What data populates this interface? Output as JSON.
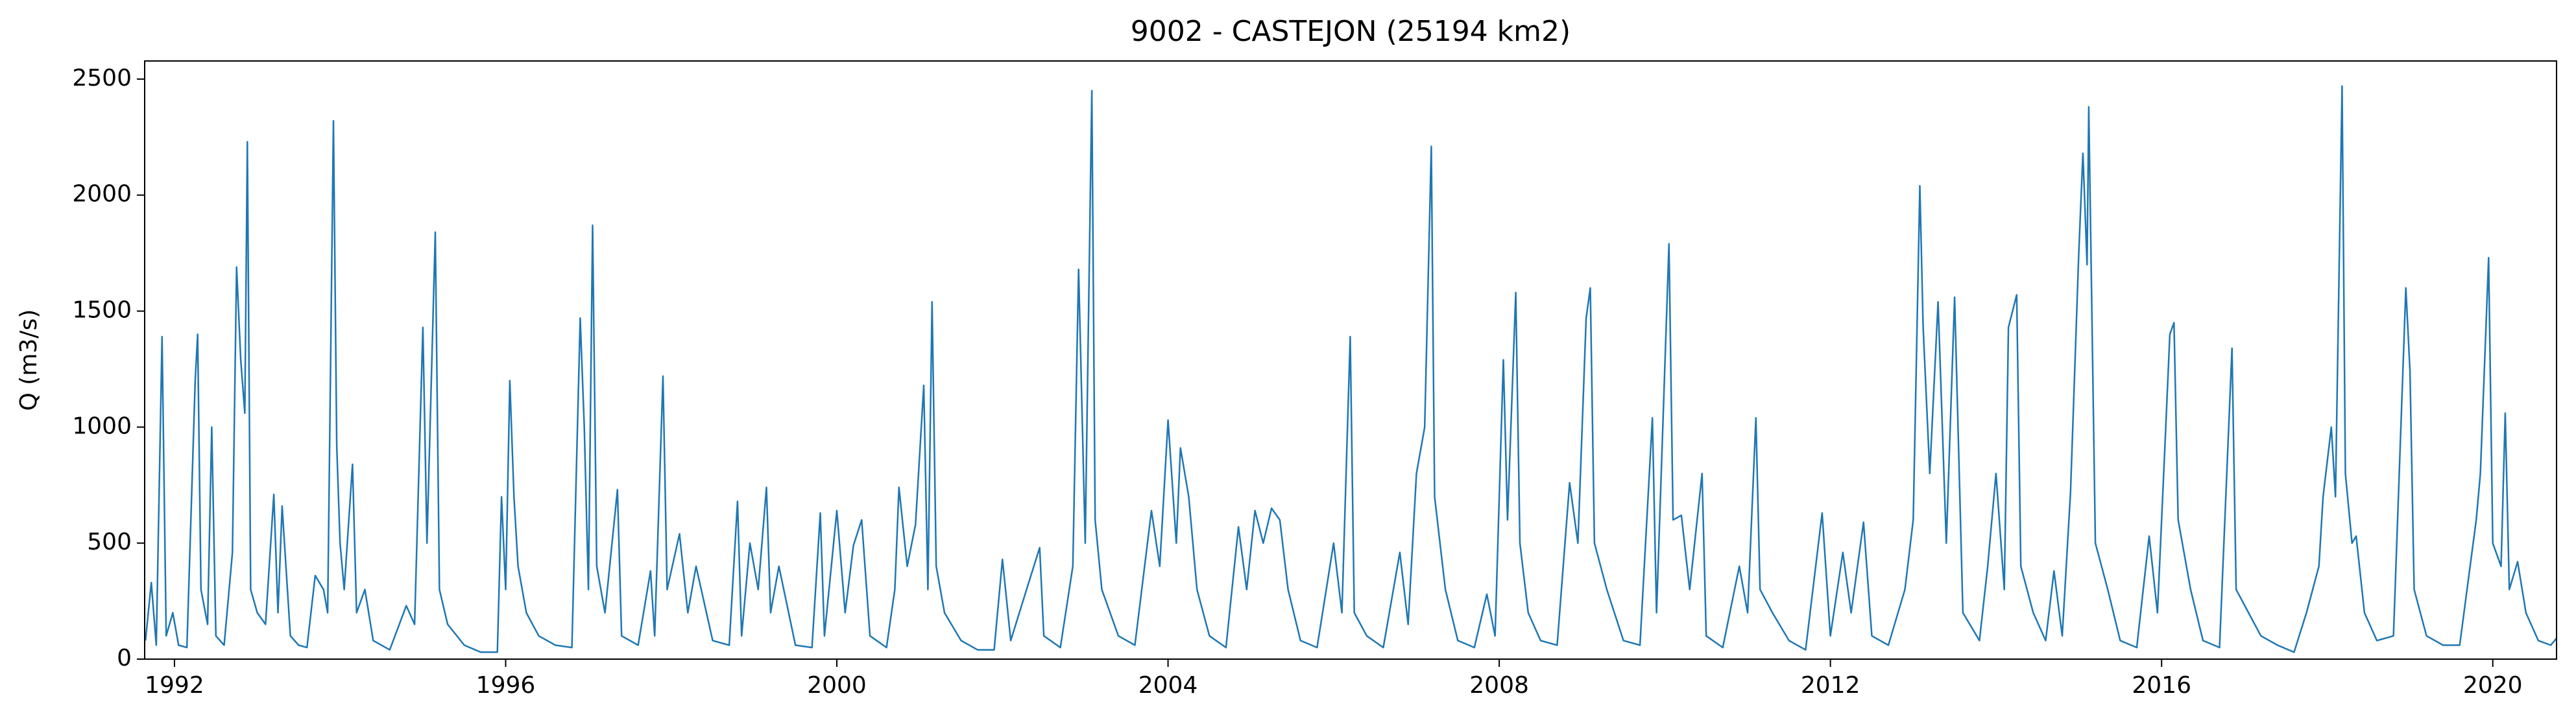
{
  "chart_data": {
    "type": "line",
    "title": "9002 - CASTEJON (25194 km2)",
    "y_label": "Q (m3/s)",
    "xlim": [
      1991.64,
      2020.77
    ],
    "xticks": [
      1992,
      1996,
      2000,
      2004,
      2008,
      2012,
      2016,
      2020
    ],
    "ylim": [
      0,
      2578
    ],
    "yticks": [
      0,
      500,
      1000,
      1500,
      2000,
      2500
    ],
    "grid": false,
    "series": [
      {
        "name": "Q",
        "color": "#1f77b4",
        "x": [
          1991.65,
          1991.72,
          1991.78,
          1991.85,
          1991.9,
          1991.98,
          1992.05,
          1992.15,
          1992.25,
          1992.28,
          1992.32,
          1992.4,
          1992.45,
          1992.5,
          1992.6,
          1992.7,
          1992.75,
          1992.8,
          1992.85,
          1992.88,
          1992.92,
          1993.0,
          1993.1,
          1993.2,
          1993.25,
          1993.3,
          1993.4,
          1993.5,
          1993.6,
          1993.7,
          1993.8,
          1993.85,
          1993.92,
          1993.96,
          1994.0,
          1994.05,
          1994.15,
          1994.2,
          1994.3,
          1994.4,
          1994.6,
          1994.8,
          1994.9,
          1995.0,
          1995.05,
          1995.15,
          1995.2,
          1995.3,
          1995.5,
          1995.7,
          1995.9,
          1995.95,
          1996.0,
          1996.05,
          1996.1,
          1996.15,
          1996.25,
          1996.4,
          1996.6,
          1996.8,
          1996.9,
          1996.95,
          1997.0,
          1997.05,
          1997.1,
          1997.2,
          1997.35,
          1997.4,
          1997.6,
          1997.75,
          1997.8,
          1997.9,
          1997.95,
          1998.1,
          1998.2,
          1998.3,
          1998.5,
          1998.7,
          1998.8,
          1998.85,
          1998.95,
          1999.05,
          1999.15,
          1999.2,
          1999.3,
          1999.5,
          1999.7,
          1999.8,
          1999.85,
          2000.0,
          2000.1,
          2000.2,
          2000.3,
          2000.4,
          2000.6,
          2000.7,
          2000.75,
          2000.85,
          2000.95,
          2001.05,
          2001.1,
          2001.15,
          2001.2,
          2001.3,
          2001.5,
          2001.7,
          2001.9,
          2002.0,
          2002.1,
          2002.3,
          2002.45,
          2002.5,
          2002.7,
          2002.85,
          2002.92,
          2003.0,
          2003.08,
          2003.12,
          2003.2,
          2003.4,
          2003.6,
          2003.8,
          2003.9,
          2004.0,
          2004.1,
          2004.15,
          2004.25,
          2004.35,
          2004.5,
          2004.7,
          2004.85,
          2004.95,
          2005.05,
          2005.15,
          2005.25,
          2005.35,
          2005.45,
          2005.6,
          2005.8,
          2006.0,
          2006.1,
          2006.2,
          2006.25,
          2006.4,
          2006.6,
          2006.8,
          2006.9,
          2007.0,
          2007.1,
          2007.18,
          2007.22,
          2007.35,
          2007.5,
          2007.7,
          2007.85,
          2007.95,
          2008.05,
          2008.1,
          2008.2,
          2008.25,
          2008.35,
          2008.5,
          2008.7,
          2008.85,
          2008.95,
          2009.05,
          2009.1,
          2009.15,
          2009.3,
          2009.5,
          2009.7,
          2009.85,
          2009.9,
          2010.05,
          2010.1,
          2010.2,
          2010.3,
          2010.45,
          2010.5,
          2010.7,
          2010.9,
          2011.0,
          2011.1,
          2011.15,
          2011.3,
          2011.5,
          2011.7,
          2011.9,
          2012.0,
          2012.15,
          2012.25,
          2012.4,
          2012.5,
          2012.7,
          2012.9,
          2013.0,
          2013.08,
          2013.12,
          2013.2,
          2013.3,
          2013.4,
          2013.5,
          2013.6,
          2013.8,
          2013.9,
          2014.0,
          2014.1,
          2014.15,
          2014.25,
          2014.3,
          2014.45,
          2014.6,
          2014.7,
          2014.8,
          2014.9,
          2015.0,
          2015.05,
          2015.1,
          2015.12,
          2015.2,
          2015.35,
          2015.5,
          2015.7,
          2015.85,
          2015.95,
          2016.05,
          2016.1,
          2016.15,
          2016.2,
          2016.35,
          2016.5,
          2016.7,
          2016.85,
          2016.9,
          2017.05,
          2017.2,
          2017.4,
          2017.6,
          2017.75,
          2017.9,
          2017.95,
          2018.05,
          2018.1,
          2018.18,
          2018.22,
          2018.3,
          2018.35,
          2018.45,
          2018.6,
          2018.8,
          2018.95,
          2019.0,
          2019.05,
          2019.2,
          2019.4,
          2019.6,
          2019.8,
          2019.85,
          2019.95,
          2020.0,
          2020.1,
          2020.15,
          2020.2,
          2020.3,
          2020.4,
          2020.55,
          2020.7,
          2020.77
        ],
        "values": [
          80,
          330,
          60,
          1390,
          100,
          200,
          60,
          50,
          1200,
          1400,
          300,
          150,
          1000,
          100,
          60,
          460,
          1690,
          1290,
          1060,
          2230,
          300,
          200,
          150,
          710,
          200,
          660,
          100,
          60,
          50,
          360,
          300,
          200,
          2320,
          920,
          500,
          300,
          840,
          200,
          300,
          80,
          40,
          230,
          150,
          1430,
          500,
          1840,
          300,
          150,
          60,
          30,
          30,
          700,
          300,
          1200,
          700,
          400,
          200,
          100,
          60,
          50,
          1470,
          1000,
          300,
          1870,
          400,
          200,
          730,
          100,
          60,
          380,
          100,
          1220,
          300,
          540,
          200,
          400,
          80,
          60,
          680,
          100,
          500,
          300,
          740,
          200,
          400,
          60,
          50,
          630,
          100,
          640,
          200,
          490,
          600,
          100,
          50,
          300,
          740,
          400,
          580,
          1180,
          300,
          1540,
          400,
          200,
          80,
          40,
          40,
          430,
          80,
          310,
          480,
          100,
          50,
          400,
          1680,
          500,
          2450,
          600,
          300,
          100,
          60,
          640,
          400,
          1030,
          500,
          910,
          700,
          300,
          100,
          50,
          570,
          300,
          640,
          500,
          650,
          600,
          300,
          80,
          50,
          500,
          200,
          1390,
          200,
          100,
          50,
          460,
          150,
          800,
          1000,
          2210,
          700,
          300,
          80,
          50,
          280,
          100,
          1290,
          600,
          1580,
          500,
          200,
          80,
          60,
          760,
          500,
          1470,
          1600,
          500,
          300,
          80,
          60,
          1040,
          200,
          1790,
          600,
          620,
          300,
          800,
          100,
          50,
          400,
          200,
          1040,
          300,
          200,
          80,
          40,
          630,
          100,
          460,
          200,
          590,
          100,
          60,
          300,
          600,
          2040,
          1430,
          800,
          1540,
          500,
          1560,
          200,
          80,
          400,
          800,
          300,
          1430,
          1570,
          400,
          200,
          80,
          380,
          100,
          720,
          1750,
          2180,
          1700,
          2380,
          500,
          300,
          80,
          50,
          530,
          200,
          1000,
          1400,
          1450,
          600,
          300,
          80,
          50,
          1340,
          300,
          200,
          100,
          60,
          30,
          200,
          400,
          700,
          1000,
          700,
          2470,
          800,
          500,
          530,
          200,
          80,
          100,
          1600,
          1240,
          300,
          100,
          60,
          60,
          600,
          800,
          1730,
          500,
          400,
          1060,
          300,
          420,
          200,
          80,
          60,
          90
        ]
      }
    ]
  }
}
